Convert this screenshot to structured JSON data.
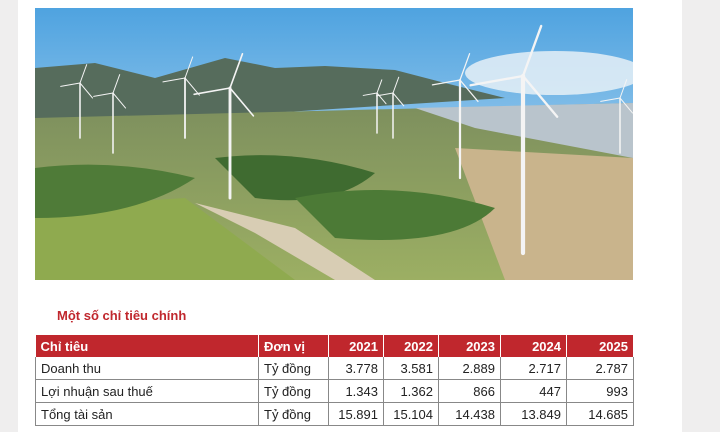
{
  "section_title": "Một số chỉ tiêu chính",
  "table": {
    "columns": [
      "Chỉ tiêu",
      "Đơn vị",
      "2021",
      "2022",
      "2023",
      "2024",
      "2025"
    ],
    "rows": [
      [
        "Doanh thu",
        "Tỷ đồng",
        "3.778",
        "3.581",
        "2.889",
        "2.717",
        "2.787"
      ],
      [
        "Lợi nhuận sau thuế",
        "Tỷ đồng",
        "1.343",
        "1.362",
        "866",
        "447",
        "993"
      ],
      [
        "Tổng tài sản",
        "Tỷ đồng",
        "15.891",
        "15.104",
        "14.438",
        "13.849",
        "14.685"
      ]
    ]
  }
}
